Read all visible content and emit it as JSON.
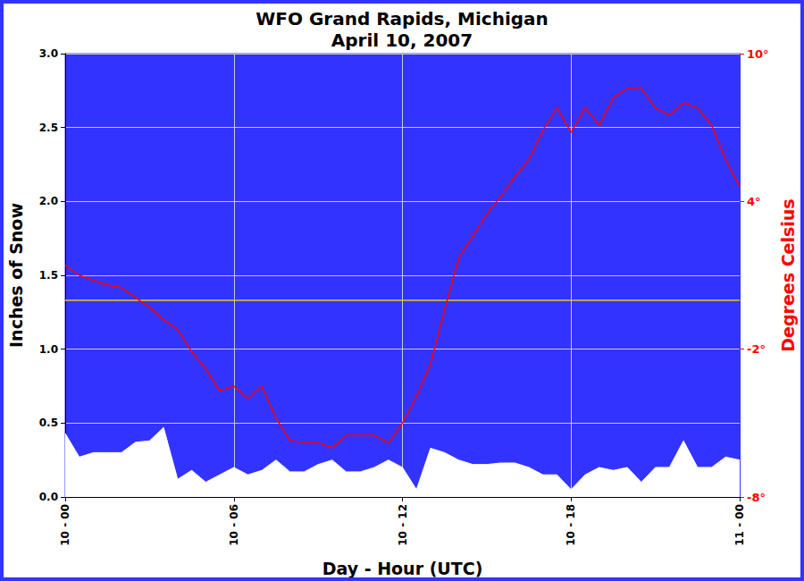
{
  "chart_data": {
    "type": "line",
    "title": "WFO Grand Rapids, Michigan",
    "subtitle": "April 10, 2007",
    "x_label": "Day - Hour (UTC)",
    "y_label": "Inches of Snow",
    "y2_label": "Degrees Celsius",
    "x": [
      0,
      0.5,
      1,
      1.5,
      2,
      2.5,
      3,
      3.5,
      4,
      4.5,
      5,
      5.5,
      6,
      6.5,
      7,
      7.5,
      8,
      8.5,
      9,
      9.5,
      10,
      10.5,
      11,
      11.5,
      12,
      12.5,
      13,
      13.5,
      14,
      14.5,
      15,
      15.5,
      16,
      16.5,
      17,
      17.5,
      18,
      18.5,
      19,
      19.5,
      20,
      20.5,
      21,
      21.5,
      22,
      22.5,
      23,
      23.5,
      24
    ],
    "xlim": [
      0,
      24
    ],
    "xticks": [
      {
        "value": 0,
        "label": "10 - 00"
      },
      {
        "value": 6,
        "label": "10 - 06"
      },
      {
        "value": 12,
        "label": "10 - 12"
      },
      {
        "value": 18,
        "label": "10 - 18"
      },
      {
        "value": 24,
        "label": "11 - 00"
      }
    ],
    "ylim": [
      0,
      3
    ],
    "yticks": [
      {
        "value": 0,
        "label": "0.0"
      },
      0.5,
      {
        "value": 1,
        "label": "1.0"
      },
      1.5,
      {
        "value": 2,
        "label": "2.0"
      },
      2.5,
      {
        "value": 3,
        "label": "3.0"
      }
    ],
    "y2lim": [
      -8,
      10
    ],
    "y2ticks": [
      {
        "value": -8,
        "label": "-8°"
      },
      {
        "value": -2,
        "label": "-2°"
      },
      {
        "value": 4,
        "label": "4°"
      },
      {
        "value": 10,
        "label": "10°"
      }
    ],
    "grid": true,
    "reference_line": {
      "value": 0,
      "axis": "y2",
      "color": "#e8c41c"
    },
    "series": [
      {
        "type": "area",
        "color": "#ffffff",
        "values": [
          0.43,
          0.27,
          0.3,
          0.3,
          0.3,
          0.37,
          0.38,
          0.47,
          0.12,
          0.18,
          0.1,
          0.15,
          0.2,
          0.15,
          0.18,
          0.25,
          0.17,
          0.17,
          0.22,
          0.25,
          0.17,
          0.17,
          0.2,
          0.25,
          0.2,
          0.05,
          0.33,
          0.3,
          0.25,
          0.22,
          0.22,
          0.23,
          0.23,
          0.2,
          0.15,
          0.15,
          0.05,
          0.15,
          0.2,
          0.18,
          0.2,
          0.1,
          0.2,
          0.2,
          0.38,
          0.2,
          0.2,
          0.27,
          0.25
        ]
      },
      {
        "type": "line",
        "axis": "y2",
        "color": "#ff0000",
        "values": [
          1.4,
          1.0,
          0.8,
          0.6,
          0.5,
          0.1,
          -0.3,
          -0.8,
          -1.2,
          -2.1,
          -2.8,
          -3.7,
          -3.5,
          -4.0,
          -3.5,
          -4.8,
          -5.7,
          -5.8,
          -5.8,
          -6.0,
          -5.5,
          -5.5,
          -5.5,
          -5.8,
          -5.0,
          -3.9,
          -2.6,
          -0.4,
          1.7,
          2.6,
          3.5,
          4.2,
          5.0,
          5.7,
          6.9,
          7.8,
          6.8,
          7.8,
          7.1,
          8.2,
          8.6,
          8.6,
          7.8,
          7.5,
          8.0,
          7.8,
          7.1,
          5.7,
          4.6
        ]
      }
    ]
  }
}
